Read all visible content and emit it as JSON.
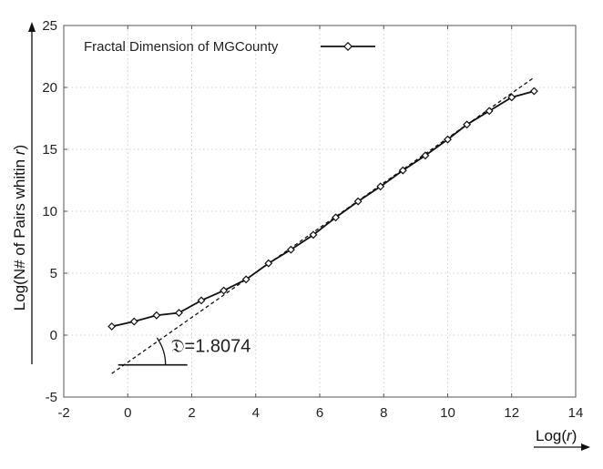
{
  "chart_data": {
    "type": "line",
    "title": "",
    "xlabel": {
      "prefix": "Log(",
      "var": "r",
      "suffix": ")"
    },
    "ylabel": {
      "prefix": "Log(N# of Pairs whitin ",
      "var": "r",
      "suffix": ")"
    },
    "xlim": [
      -2,
      14
    ],
    "ylim": [
      -5,
      25
    ],
    "xticks": [
      -2,
      0,
      2,
      4,
      6,
      8,
      10,
      12,
      14
    ],
    "yticks": [
      -5,
      0,
      5,
      10,
      15,
      20,
      25
    ],
    "grid": true,
    "legend_position": "top-left",
    "series": [
      {
        "name": "Fractal Dimension of MGCounty",
        "x": [
          -0.5,
          0.2,
          0.9,
          1.6,
          2.3,
          3.0,
          3.7,
          4.4,
          5.1,
          5.8,
          6.5,
          7.2,
          7.9,
          8.6,
          9.3,
          10.0,
          10.6,
          11.3,
          12.0,
          12.7
        ],
        "y": [
          0.7,
          1.1,
          1.6,
          1.8,
          2.8,
          3.6,
          4.5,
          5.8,
          6.9,
          8.1,
          9.5,
          10.8,
          12.0,
          13.3,
          14.5,
          15.8,
          17.0,
          18.1,
          19.2,
          19.7
        ],
        "color": "#111111",
        "marker": "diamond"
      }
    ],
    "fit_line": {
      "x": [
        -0.5,
        12.7
      ],
      "y": [
        -3.1,
        20.8
      ],
      "style": "dashed",
      "color": "#111111"
    },
    "annotation": {
      "text": "𝔇=1.8074",
      "slope": 1.8074,
      "origin": [
        -0.3,
        -2.4
      ]
    }
  }
}
